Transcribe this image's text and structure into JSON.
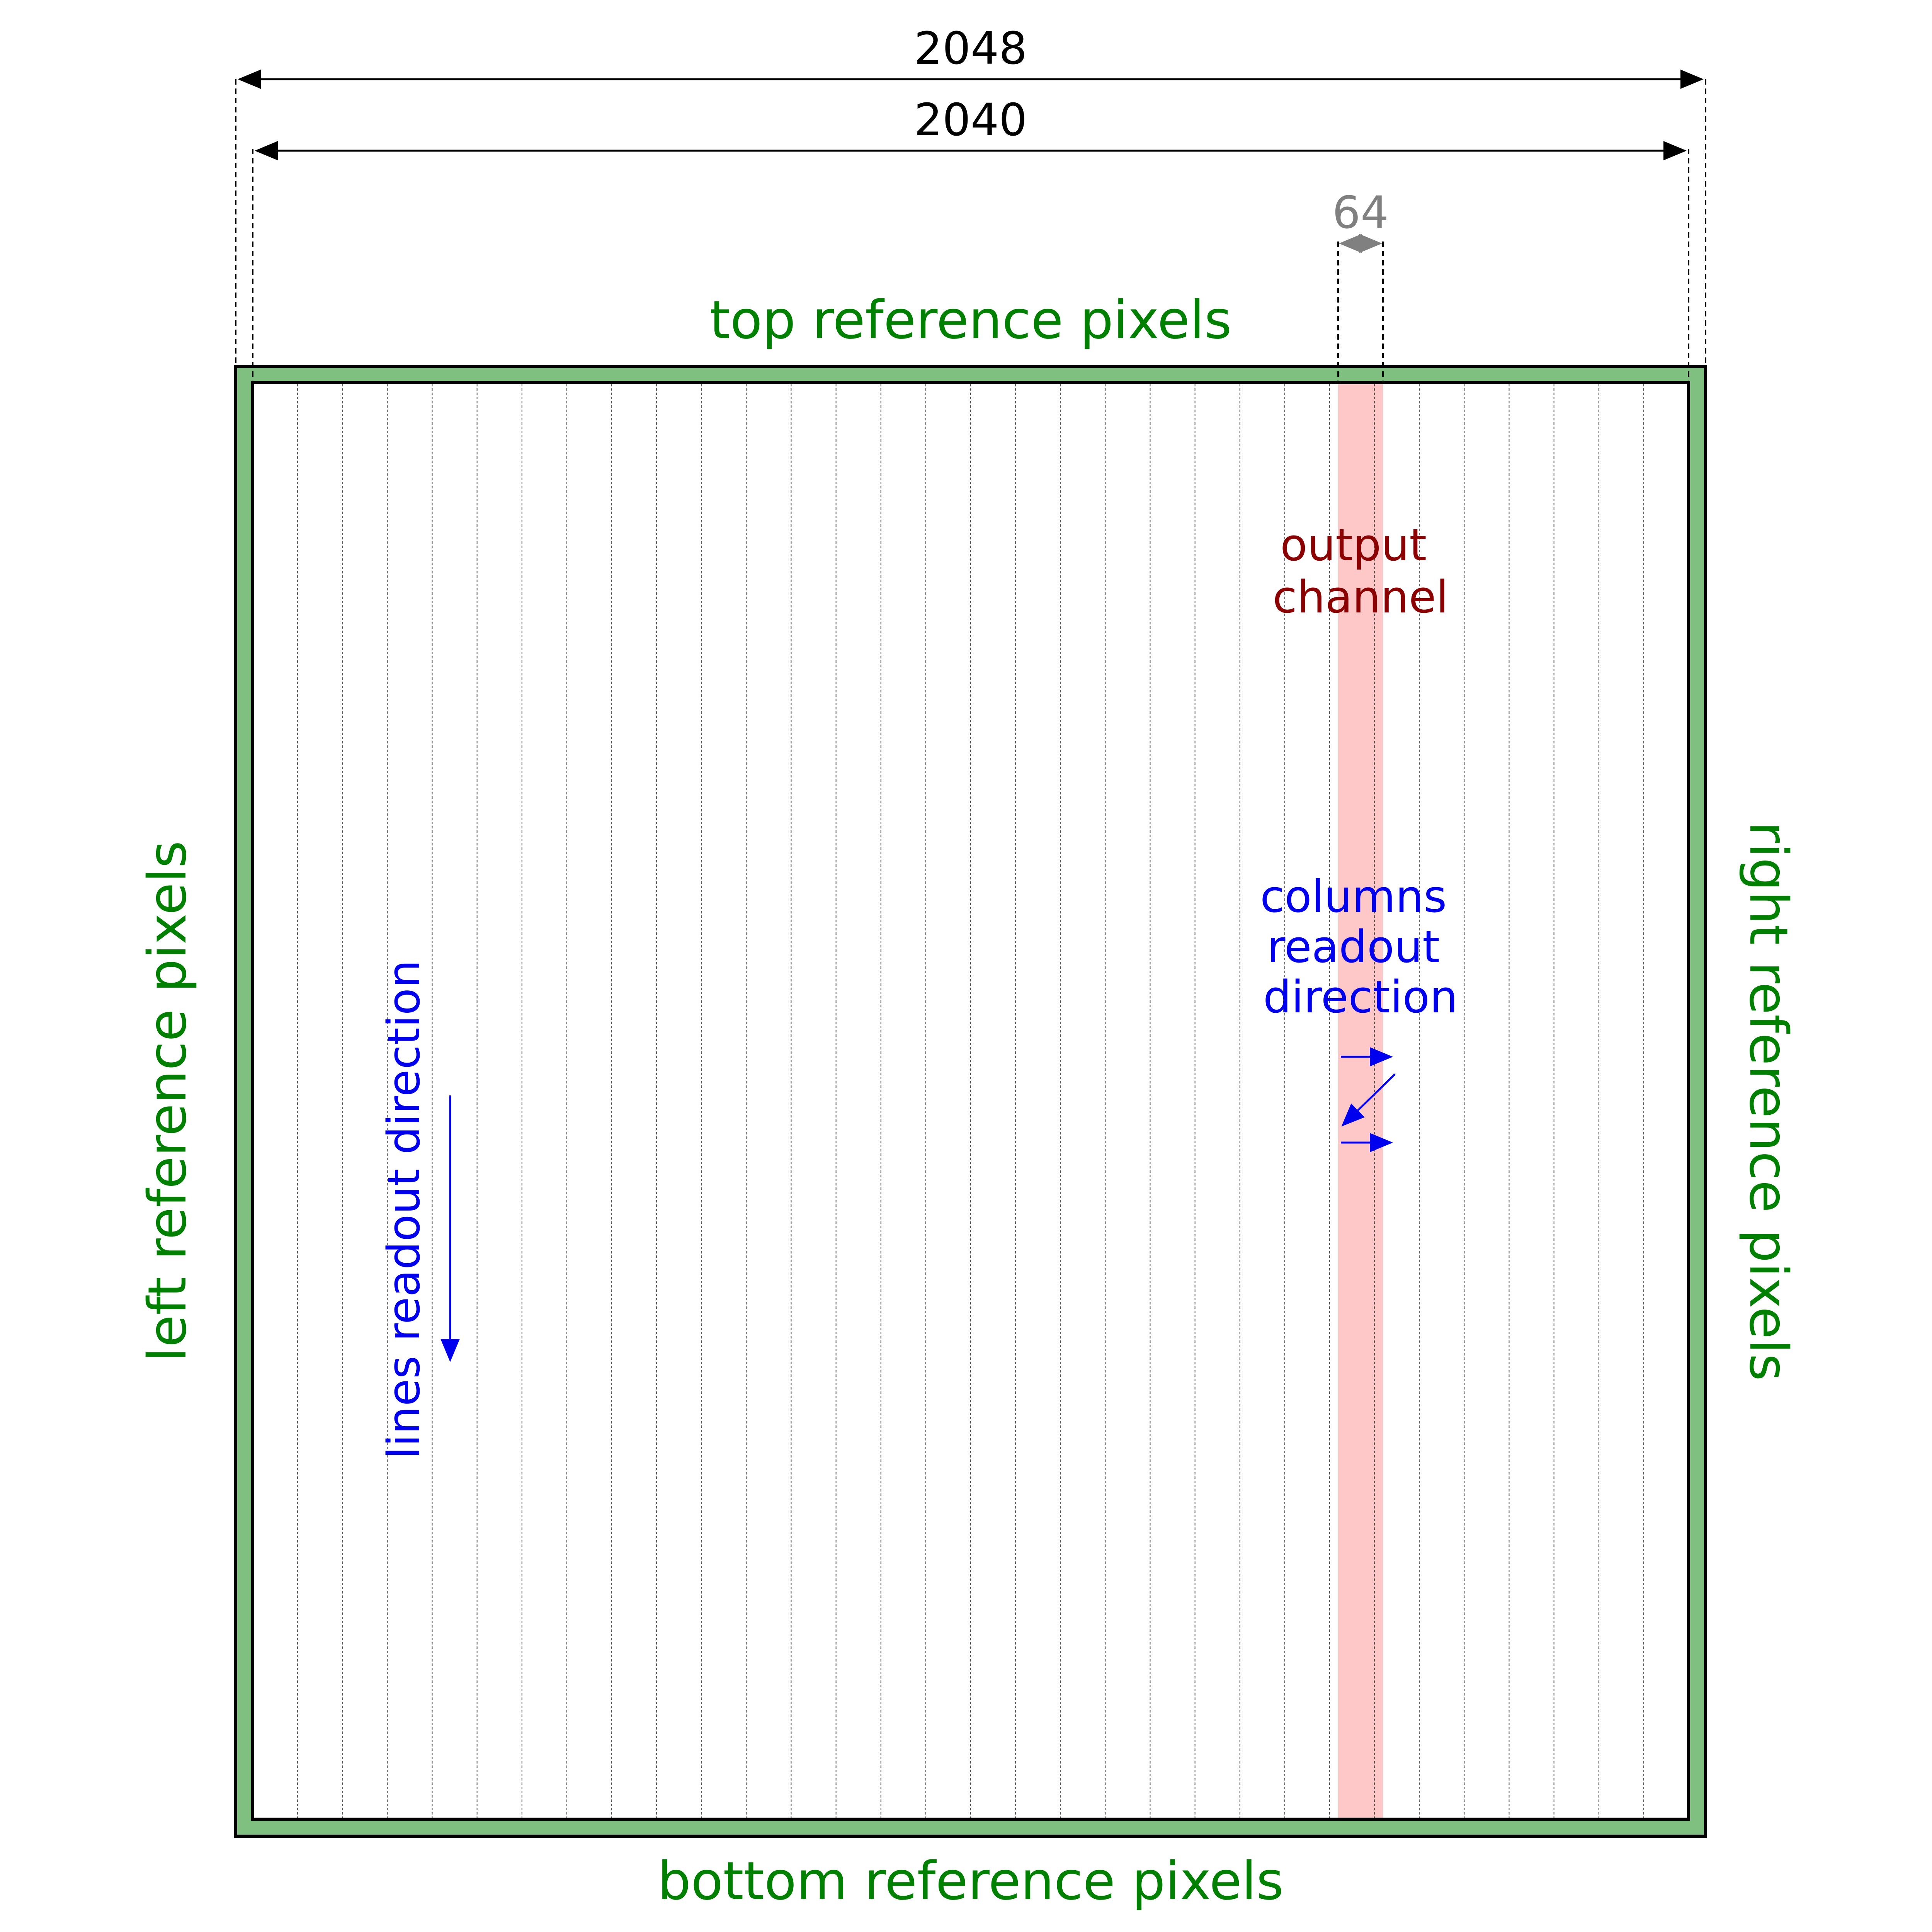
{
  "dimensions": {
    "full_width": "2048",
    "inner_width": "2040",
    "channel_width": "64"
  },
  "labels": {
    "top": "top reference pixels",
    "bottom": "bottom reference pixels",
    "left": "left reference pixels",
    "right": "right reference pixels",
    "output_channel": [
      "output",
      "channel"
    ],
    "columns_readout": [
      "columns",
      "readout",
      "direction"
    ],
    "lines_readout": "lines readout direction"
  },
  "layout_info": {
    "channel_count": 32,
    "highlighted_channel_index": 24
  },
  "colors": {
    "reference_border": "#7fbf7f",
    "channel_highlight": "#ffc8c8",
    "frame": "#000000",
    "column_divider": "#555555",
    "arrow_blue": "#0000ee"
  }
}
